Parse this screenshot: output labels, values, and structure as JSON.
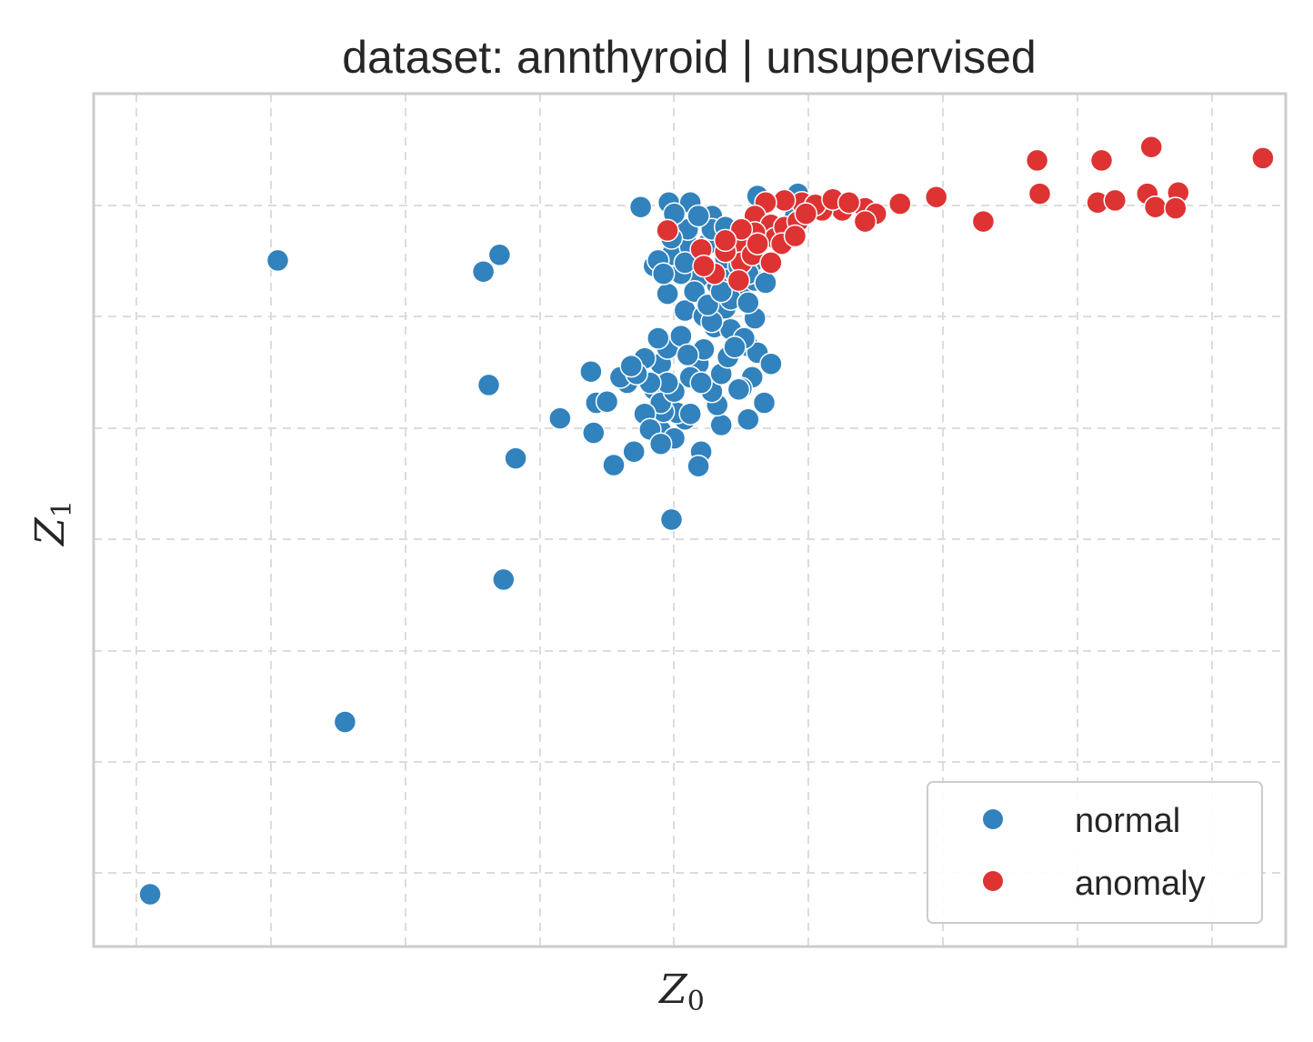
{
  "chart_data": {
    "type": "scatter",
    "title": "dataset: annthyroid | unsupervised",
    "xlabel": "Z",
    "xlabel_sub": "0",
    "ylabel": "Z",
    "ylabel_sub": "1",
    "xlim": [
      -0.32,
      8.55
    ],
    "ylim": [
      -7.67,
      0.0
    ],
    "grid": true,
    "show_tick_labels": false,
    "legend_position": "bottom-right",
    "colors": {
      "normal": "#3182bd",
      "anomaly": "#de3333",
      "grid": "#dcdcdc",
      "frame": "#cccccc"
    },
    "series": [
      {
        "name": "normal",
        "points": [
          [
            0.1,
            -7.2
          ],
          [
            1.05,
            -1.5
          ],
          [
            1.55,
            -5.65
          ],
          [
            2.58,
            -1.6
          ],
          [
            2.7,
            -1.45
          ],
          [
            2.62,
            -2.62
          ],
          [
            2.82,
            -3.28
          ],
          [
            2.73,
            -4.37
          ],
          [
            3.15,
            -2.92
          ],
          [
            3.4,
            -3.05
          ],
          [
            3.38,
            -2.5
          ],
          [
            3.42,
            -2.78
          ],
          [
            3.55,
            -3.34
          ],
          [
            3.7,
            -3.22
          ],
          [
            3.65,
            -2.6
          ],
          [
            3.5,
            -2.77
          ],
          [
            3.85,
            -1.55
          ],
          [
            3.75,
            -1.02
          ],
          [
            3.96,
            -0.98
          ],
          [
            4.12,
            -0.98
          ],
          [
            4.28,
            -1.1
          ],
          [
            3.98,
            -3.83
          ],
          [
            4.35,
            -2.98
          ],
          [
            4.2,
            -3.22
          ],
          [
            4.08,
            -2.93
          ],
          [
            3.9,
            -2.43
          ],
          [
            3.9,
            -3.03
          ],
          [
            3.85,
            -2.66
          ],
          [
            3.95,
            -2.29
          ],
          [
            4.18,
            -2.43
          ],
          [
            4.32,
            -2.8
          ],
          [
            4.58,
            -2.55
          ],
          [
            4.5,
            -2.65
          ],
          [
            4.55,
            -2.27
          ],
          [
            4.62,
            -2.33
          ],
          [
            4.6,
            -2.02
          ],
          [
            4.72,
            -2.43
          ],
          [
            4.67,
            -2.78
          ],
          [
            4.55,
            -2.93
          ],
          [
            4.48,
            -2.66
          ],
          [
            4.02,
            -2.87
          ],
          [
            3.92,
            -2.86
          ],
          [
            3.9,
            -2.78
          ],
          [
            4.28,
            -2.68
          ],
          [
            4.35,
            -2.52
          ],
          [
            4.4,
            -2.37
          ],
          [
            4.05,
            -2.18
          ],
          [
            4.08,
            -1.95
          ],
          [
            4.22,
            -2.0
          ],
          [
            4.38,
            -1.93
          ],
          [
            4.5,
            -1.75
          ],
          [
            4.6,
            -1.68
          ],
          [
            4.45,
            -1.6
          ],
          [
            4.32,
            -1.72
          ],
          [
            4.18,
            -1.65
          ],
          [
            4.05,
            -1.62
          ],
          [
            3.95,
            -1.8
          ],
          [
            3.98,
            -1.45
          ],
          [
            4.12,
            -1.38
          ],
          [
            4.25,
            -1.35
          ],
          [
            4.38,
            -1.48
          ],
          [
            4.48,
            -1.35
          ],
          [
            4.58,
            -1.52
          ],
          [
            4.55,
            -1.62
          ],
          [
            4.28,
            -1.22
          ],
          [
            4.1,
            -1.22
          ],
          [
            3.98,
            -1.3
          ],
          [
            4.0,
            -1.08
          ],
          [
            4.18,
            -1.1
          ],
          [
            4.38,
            -1.2
          ],
          [
            4.42,
            -1.85
          ],
          [
            4.3,
            -2.1
          ],
          [
            4.22,
            -2.3
          ],
          [
            4.12,
            -2.55
          ],
          [
            4.0,
            -2.68
          ],
          [
            4.2,
            -2.6
          ],
          [
            4.42,
            -2.12
          ],
          [
            4.52,
            -2.2
          ],
          [
            3.6,
            -2.55
          ],
          [
            3.78,
            -2.38
          ],
          [
            4.18,
            -3.35
          ],
          [
            4.0,
            -3.1
          ],
          [
            4.12,
            -2.88
          ],
          [
            3.95,
            -2.6
          ],
          [
            3.82,
            -2.6
          ],
          [
            3.72,
            -2.52
          ],
          [
            3.68,
            -2.45
          ],
          [
            3.88,
            -2.2
          ],
          [
            3.78,
            -2.88
          ],
          [
            4.28,
            -2.05
          ],
          [
            4.15,
            -1.78
          ],
          [
            3.88,
            -1.5
          ],
          [
            4.25,
            -1.9
          ],
          [
            4.35,
            -1.78
          ],
          [
            4.48,
            -1.55
          ],
          [
            4.08,
            -1.52
          ],
          [
            3.92,
            -1.62
          ],
          [
            4.55,
            -1.88
          ],
          [
            4.68,
            -1.7
          ],
          [
            4.1,
            -2.35
          ],
          [
            3.82,
            -3.02
          ],
          [
            3.9,
            -3.15
          ],
          [
            4.45,
            -2.28
          ],
          [
            4.62,
            -0.92
          ],
          [
            4.9,
            -1.1
          ],
          [
            4.92,
            -0.9
          ]
        ]
      },
      {
        "name": "anomaly",
        "points": [
          [
            6.7,
            -0.6
          ],
          [
            6.72,
            -0.9
          ],
          [
            7.18,
            -0.6
          ],
          [
            7.55,
            -0.48
          ],
          [
            7.52,
            -0.9
          ],
          [
            7.75,
            -0.89
          ],
          [
            7.15,
            -0.98
          ],
          [
            7.28,
            -0.96
          ],
          [
            7.58,
            -1.02
          ],
          [
            7.73,
            -1.03
          ],
          [
            8.38,
            -0.58
          ],
          [
            5.68,
            -0.99
          ],
          [
            5.95,
            -0.93
          ],
          [
            6.3,
            -1.15
          ],
          [
            5.42,
            -1.03
          ],
          [
            5.25,
            -1.05
          ],
          [
            5.1,
            -1.05
          ],
          [
            4.95,
            -0.98
          ],
          [
            4.82,
            -0.96
          ],
          [
            4.68,
            -0.98
          ],
          [
            4.6,
            -1.1
          ],
          [
            4.72,
            -1.18
          ],
          [
            4.75,
            -1.3
          ],
          [
            4.82,
            -1.2
          ],
          [
            4.92,
            -1.15
          ],
          [
            5.05,
            -1.0
          ],
          [
            5.18,
            -0.95
          ],
          [
            5.3,
            -0.98
          ],
          [
            5.5,
            -1.08
          ],
          [
            5.42,
            -1.15
          ],
          [
            4.6,
            -1.25
          ],
          [
            4.52,
            -1.38
          ],
          [
            4.5,
            -1.52
          ],
          [
            4.58,
            -1.45
          ],
          [
            4.38,
            -1.42
          ],
          [
            4.3,
            -1.62
          ],
          [
            4.48,
            -1.68
          ],
          [
            4.5,
            -1.22
          ],
          [
            4.38,
            -1.32
          ],
          [
            4.62,
            -1.35
          ],
          [
            4.8,
            -1.35
          ],
          [
            4.9,
            -1.28
          ],
          [
            4.98,
            -1.08
          ],
          [
            3.95,
            -1.23
          ],
          [
            4.2,
            -1.4
          ],
          [
            4.22,
            -1.55
          ],
          [
            4.72,
            -1.52
          ]
        ]
      }
    ]
  }
}
